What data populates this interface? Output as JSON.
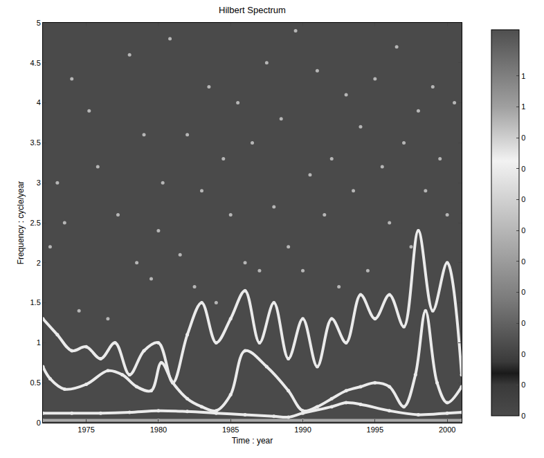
{
  "chart_data": {
    "type": "scatter",
    "title": "Hilbert Spectrum",
    "x_label": "Time : year",
    "y_label": "Frequency : cycle/year",
    "xlim": [
      1972,
      2001
    ],
    "xticks": [
      1975,
      1980,
      1985,
      1990,
      1995,
      2000
    ],
    "ylim": [
      0,
      5
    ],
    "yticks": [
      0,
      0.5,
      1,
      1.5,
      2,
      2.5,
      3,
      3.5,
      4,
      4.5,
      5
    ],
    "grid": false,
    "colorbar": {
      "range": [
        0,
        1.25
      ],
      "ticks": [
        {
          "value": 0,
          "label": "0"
        },
        {
          "value": 0.1,
          "label": "0"
        },
        {
          "value": 0.2,
          "label": "0"
        },
        {
          "value": 0.3,
          "label": "0"
        },
        {
          "value": 0.4,
          "label": "0"
        },
        {
          "value": 0.5,
          "label": "0"
        },
        {
          "value": 0.6,
          "label": "0"
        },
        {
          "value": 0.7,
          "label": "0"
        },
        {
          "value": 0.8,
          "label": "0"
        },
        {
          "value": 0.9,
          "label": "0"
        },
        {
          "value": 1.0,
          "label": "1"
        },
        {
          "value": 1.1,
          "label": "1"
        }
      ]
    },
    "series": [
      {
        "line_style": "solid",
        "amplitude": 0.55,
        "x": [
          1972,
          1980,
          1990,
          2001
        ],
        "values": [
          0.03,
          0.03,
          0.03,
          0.03
        ]
      },
      {
        "line_style": "solid",
        "amplitude": 0.8,
        "x": [
          1972,
          1974,
          1976,
          1978,
          1980,
          1982,
          1984,
          1986,
          1988,
          1989,
          1990,
          1992,
          1993,
          1994,
          1996,
          1998,
          2000,
          2001
        ],
        "values": [
          0.12,
          0.12,
          0.12,
          0.13,
          0.15,
          0.14,
          0.12,
          0.1,
          0.08,
          0.07,
          0.12,
          0.2,
          0.25,
          0.23,
          0.15,
          0.1,
          0.12,
          0.13
        ]
      },
      {
        "line_style": "solid",
        "amplitude": 0.8,
        "x": [
          1972,
          1972.5,
          1973.5,
          1975,
          1976.5,
          1977.5,
          1978.5,
          1979.5,
          1980.2,
          1981,
          1982,
          1983,
          1984,
          1985,
          1986,
          1987.5,
          1989,
          1990,
          1991,
          1992,
          1993,
          1994,
          1995,
          1996,
          1997,
          1997.8,
          1998.5,
          1999.3,
          2000,
          2001
        ],
        "values": [
          0.7,
          0.55,
          0.42,
          0.48,
          0.65,
          0.6,
          0.45,
          0.4,
          0.75,
          0.5,
          0.3,
          0.2,
          0.15,
          0.35,
          0.9,
          0.7,
          0.4,
          0.15,
          0.2,
          0.3,
          0.4,
          0.45,
          0.5,
          0.45,
          0.2,
          0.6,
          1.4,
          0.5,
          0.25,
          0.45
        ]
      },
      {
        "line_style": "solid",
        "amplitude": 0.8,
        "x": [
          1972,
          1973,
          1974,
          1975,
          1976,
          1977,
          1978,
          1979,
          1980,
          1981,
          1982,
          1983,
          1984,
          1985,
          1986,
          1987,
          1988,
          1989,
          1990,
          1991,
          1992,
          1993,
          1994,
          1995,
          1996,
          1997,
          1998,
          1999,
          2000,
          2001
        ],
        "values": [
          1.3,
          1.1,
          0.9,
          0.95,
          0.8,
          1.0,
          0.6,
          0.9,
          1.0,
          0.5,
          1.1,
          1.5,
          1.0,
          1.3,
          1.65,
          1.0,
          1.5,
          0.8,
          1.3,
          0.7,
          1.3,
          1.0,
          1.6,
          1.3,
          1.6,
          1.2,
          2.4,
          1.4,
          2.0,
          0.6
        ]
      }
    ],
    "dots": {
      "amplitude": 0.6,
      "x": [
        1972.5,
        1973,
        1973.5,
        1974,
        1974.5,
        1975.2,
        1975.8,
        1976.5,
        1977.2,
        1978,
        1978.5,
        1979,
        1979.5,
        1980,
        1980.3,
        1980.8,
        1981.5,
        1982,
        1982.5,
        1983,
        1983.5,
        1984,
        1984.5,
        1985,
        1985.5,
        1986,
        1986.5,
        1987,
        1987.5,
        1988,
        1988.5,
        1989,
        1989.5,
        1990,
        1990.5,
        1991,
        1991.5,
        1992,
        1992.5,
        1993,
        1993.5,
        1994,
        1994.5,
        1995,
        1995.5,
        1996,
        1996.5,
        1997,
        1997.5,
        1998,
        1998.5,
        1999,
        1999.5,
        2000,
        2000.5
      ],
      "values": [
        2.2,
        3.0,
        2.5,
        4.3,
        1.4,
        3.9,
        3.2,
        1.3,
        2.6,
        4.6,
        2.0,
        3.6,
        1.8,
        2.4,
        3.0,
        4.8,
        2.1,
        3.6,
        1.7,
        2.9,
        4.2,
        1.5,
        3.3,
        2.6,
        4.0,
        2.0,
        3.5,
        1.9,
        4.5,
        2.7,
        3.8,
        2.2,
        4.9,
        1.9,
        3.1,
        4.4,
        2.6,
        3.3,
        1.7,
        4.1,
        2.9,
        3.7,
        1.9,
        4.3,
        3.2,
        2.5,
        4.7,
        3.5,
        2.2,
        3.9,
        2.9,
        4.2,
        3.3,
        2.6,
        4.0
      ]
    }
  }
}
